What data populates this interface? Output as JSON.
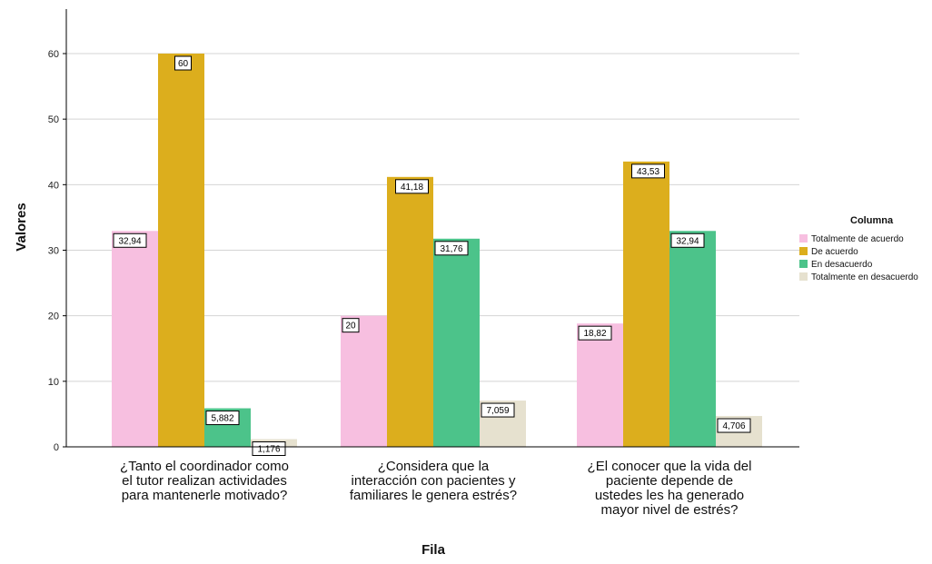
{
  "chart_data": {
    "type": "bar",
    "xlabel": "Fila",
    "ylabel": "Valores",
    "ylim": [
      0,
      65
    ],
    "yticks": [
      0,
      10,
      20,
      30,
      40,
      50,
      60
    ],
    "grid": true,
    "legend_position": "right",
    "legend_title": "Columna",
    "categories": [
      [
        "¿Tanto el coordinador como",
        "el tutor realizan actividades",
        "para mantenerle motivado?"
      ],
      [
        "¿Considera que la",
        "interacción con pacientes y",
        "familiares le genera estrés?"
      ],
      [
        "¿El conocer que la vida del",
        "paciente depende de",
        "ustedes les ha generado",
        "mayor nivel de estrés?"
      ]
    ],
    "series": [
      {
        "name": "Totalmente de acuerdo",
        "color": "#f7bfe0",
        "values": [
          32.94,
          20,
          18.82
        ],
        "labels": [
          "32,94",
          "20",
          "18,82"
        ]
      },
      {
        "name": "De acuerdo",
        "color": "#dcae1d",
        "values": [
          60,
          41.18,
          43.53
        ],
        "labels": [
          "60",
          "41,18",
          "43,53"
        ]
      },
      {
        "name": "En desacuerdo",
        "color": "#4cc38a",
        "values": [
          5.882,
          31.76,
          32.94
        ],
        "labels": [
          "5,882",
          "31,76",
          "32,94"
        ]
      },
      {
        "name": "Totalmente en desacuerdo",
        "color": "#e6e1cf",
        "values": [
          1.176,
          7.059,
          4.706
        ],
        "labels": [
          "1,176",
          "7,059",
          "4,706"
        ]
      }
    ]
  }
}
